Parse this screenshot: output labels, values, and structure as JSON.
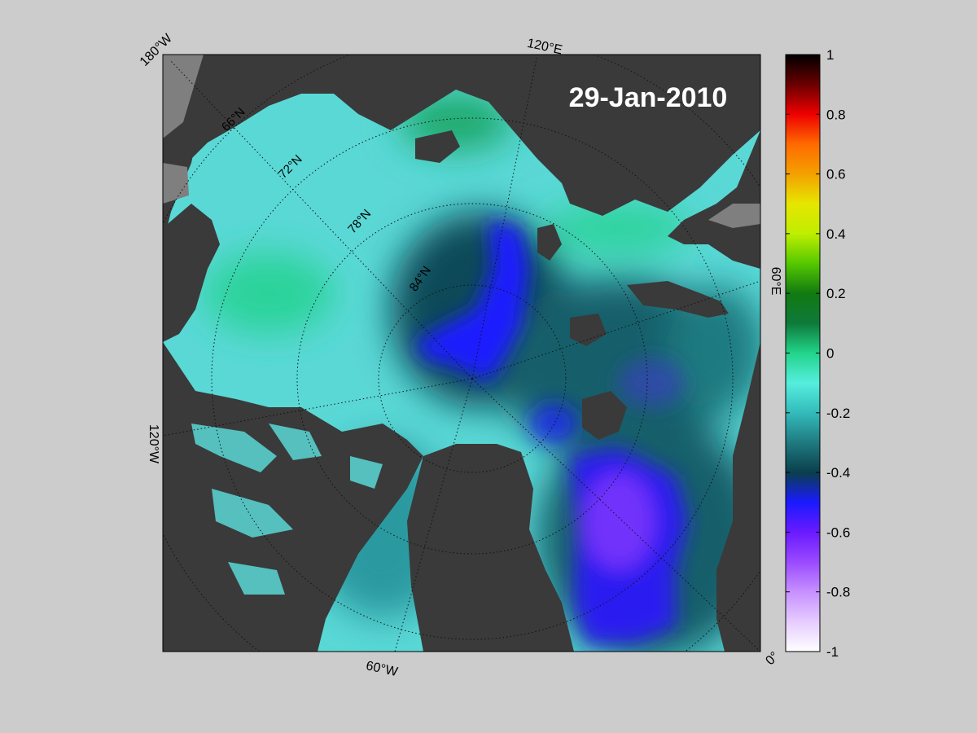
{
  "map": {
    "date_label": "29-Jan-2010",
    "projection": "north-polar-stereographic",
    "longitude_labels": [
      "180°W",
      "120°E",
      "60°E",
      "0°",
      "60°W",
      "120°W"
    ],
    "latitude_labels": [
      "66°N",
      "72°N",
      "78°N",
      "84°N"
    ],
    "colors": {
      "land": "#3a3a3a",
      "ice_shelf": "#7f7f7f",
      "background": "#cccccc",
      "grid": "#111111"
    }
  },
  "colorbar": {
    "min": -1,
    "max": 1,
    "ticks": [
      "1",
      "0.8",
      "0.6",
      "0.4",
      "0.2",
      "0",
      "-0.2",
      "-0.4",
      "-0.6",
      "-0.8",
      "-1"
    ],
    "stops": [
      {
        "value": 1.0,
        "color": "#000000"
      },
      {
        "value": 0.9,
        "color": "#6a0000"
      },
      {
        "value": 0.8,
        "color": "#ee0000"
      },
      {
        "value": 0.7,
        "color": "#ff6a00"
      },
      {
        "value": 0.6,
        "color": "#f4a000"
      },
      {
        "value": 0.5,
        "color": "#e6e600"
      },
      {
        "value": 0.4,
        "color": "#bfee00"
      },
      {
        "value": 0.3,
        "color": "#55c800"
      },
      {
        "value": 0.2,
        "color": "#117a11"
      },
      {
        "value": 0.1,
        "color": "#0e7a3a"
      },
      {
        "value": 0.0,
        "color": "#22d48a"
      },
      {
        "value": -0.1,
        "color": "#55eedd"
      },
      {
        "value": -0.2,
        "color": "#33bbbb"
      },
      {
        "value": -0.3,
        "color": "#1f7a80"
      },
      {
        "value": -0.4,
        "color": "#0a3f4c"
      },
      {
        "value": -0.5,
        "color": "#1a1aff"
      },
      {
        "value": -0.6,
        "color": "#6a1aff"
      },
      {
        "value": -0.7,
        "color": "#9a4aff"
      },
      {
        "value": -0.8,
        "color": "#c690ff"
      },
      {
        "value": -0.9,
        "color": "#e6ccff"
      },
      {
        "value": -1.0,
        "color": "#ffffff"
      }
    ]
  }
}
